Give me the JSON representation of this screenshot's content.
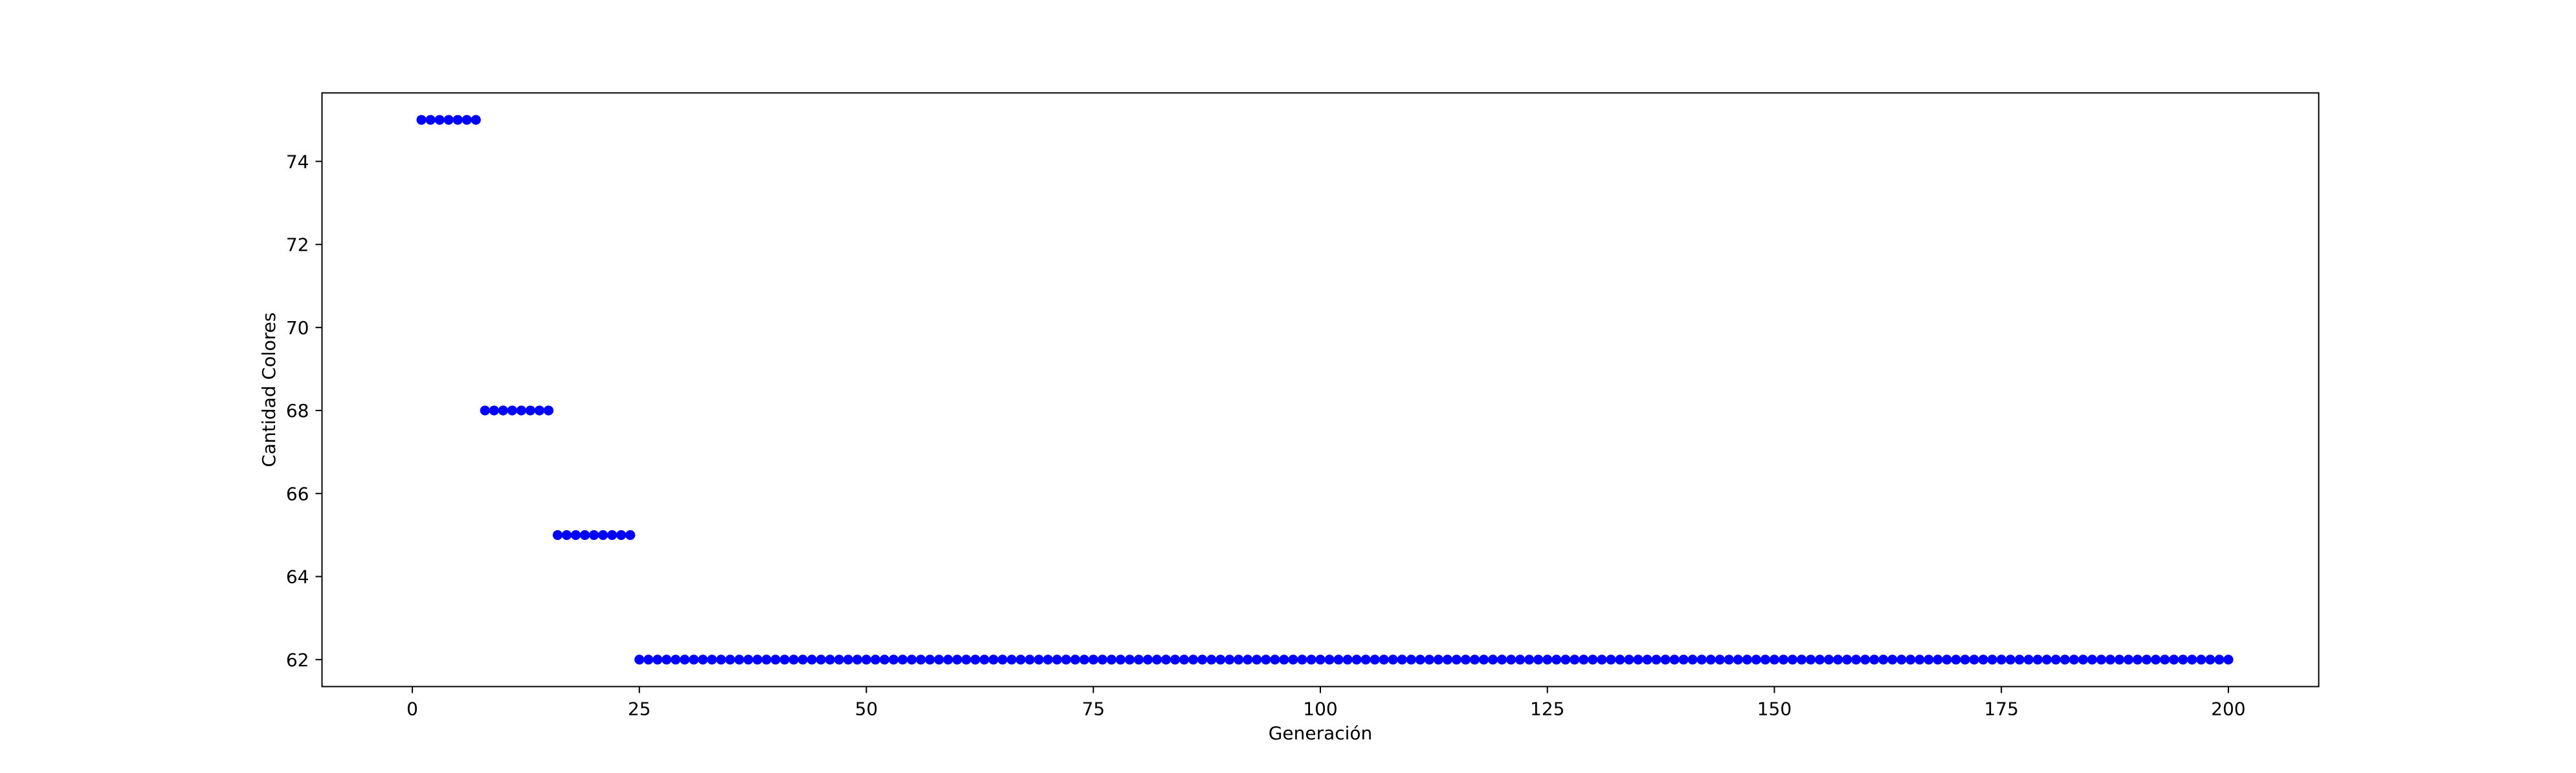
{
  "chart_data": {
    "type": "scatter",
    "title": "",
    "xlabel": "Generación",
    "ylabel": "Cantidad Colores",
    "xlim": [
      -9.95,
      209.95
    ],
    "ylim": [
      61.35,
      75.65
    ],
    "xticks": [
      0,
      25,
      50,
      75,
      100,
      125,
      150,
      175,
      200
    ],
    "yticks": [
      62,
      64,
      66,
      68,
      70,
      72,
      74
    ],
    "grid": false,
    "legend": "none",
    "marker_color": "#0000ff",
    "segments": [
      {
        "x_start": 1,
        "x_end": 7,
        "y": 75
      },
      {
        "x_start": 8,
        "x_end": 15,
        "y": 68
      },
      {
        "x_start": 16,
        "x_end": 24,
        "y": 65
      },
      {
        "x_start": 25,
        "x_end": 200,
        "y": 62
      }
    ],
    "series": [
      {
        "x": [],
        "y": []
      }
    ]
  }
}
